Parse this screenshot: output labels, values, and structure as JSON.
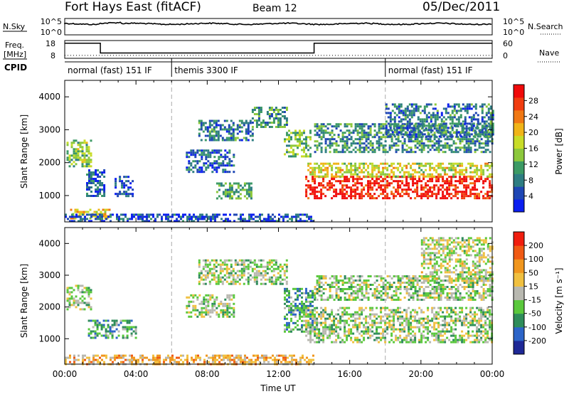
{
  "header": {
    "station": "Fort Hays East (fitACF)",
    "beam": "Beam 12",
    "date": "05/Dec/2011"
  },
  "left_labels": {
    "nsky": "N.Sky",
    "freq": "Freq.",
    "freq_unit": "[MHz]",
    "cpid": "CPID"
  },
  "right_labels": {
    "nsearch": "N.Search",
    "nave": "Nave"
  },
  "top_axes": {
    "noise_ticks_left": [
      "10^5",
      "10^0"
    ],
    "noise_ticks_right": [
      "10^5",
      "10^0"
    ],
    "freq_ticks": [
      "18",
      "8"
    ],
    "nave_ticks": [
      "60",
      "0"
    ]
  },
  "cpid_segments": [
    {
      "label": "normal (fast) 151 IF",
      "start_hour": 0,
      "end_hour": 6
    },
    {
      "label": "themis 3300 IF",
      "start_hour": 6,
      "end_hour": 18
    },
    {
      "label": "normal (fast) 151 IF",
      "start_hour": 18,
      "end_hour": 24
    }
  ],
  "freq_series": {
    "name": "Freq.",
    "hours": [
      0,
      2,
      2,
      14,
      14,
      24
    ],
    "values_mhz": [
      16.5,
      16.5,
      11,
      11,
      16.5,
      16.5
    ]
  },
  "nave_series": {
    "name": "Nave",
    "value": 10
  },
  "chart_data": [
    {
      "type": "heatmap",
      "ylabel": "Slant Range [km]",
      "xlim_hours": [
        0,
        24
      ],
      "ylim_km": [
        200,
        4500
      ],
      "yticks": [
        "1000",
        "2000",
        "3000",
        "4000"
      ],
      "colorbar": {
        "label": "Power [dB]",
        "ticks": [
          "4",
          "8",
          "12",
          "16",
          "20",
          "24",
          "28"
        ],
        "colors": [
          "#0a1ef0",
          "#1e46b4",
          "#2e7d82",
          "#3c9a64",
          "#8cc83c",
          "#c8dc28",
          "#f0b418",
          "#f07814",
          "#f03c0f",
          "#f00a0a"
        ]
      },
      "regions": [
        {
          "t0": 0.1,
          "t1": 1.5,
          "r0": 1900,
          "r1": 2700,
          "level": 0.45
        },
        {
          "t0": 0.3,
          "t1": 2.5,
          "r0": 300,
          "r1": 600,
          "level": 0.6
        },
        {
          "t0": 1.2,
          "t1": 2.2,
          "r0": 1000,
          "r1": 1800,
          "level": 0.2
        },
        {
          "t0": 2.8,
          "t1": 3.8,
          "r0": 1000,
          "r1": 1600,
          "level": 0.15
        },
        {
          "t0": 6.8,
          "t1": 9.5,
          "r0": 1700,
          "r1": 2400,
          "level": 0.2
        },
        {
          "t0": 7.5,
          "t1": 10.5,
          "r0": 2700,
          "r1": 3300,
          "level": 0.25
        },
        {
          "t0": 8.5,
          "t1": 10.5,
          "r0": 900,
          "r1": 1400,
          "level": 0.35
        },
        {
          "t0": 10.5,
          "t1": 12.5,
          "r0": 3100,
          "r1": 3700,
          "level": 0.3
        },
        {
          "t0": 12.3,
          "t1": 13.8,
          "r0": 2200,
          "r1": 3000,
          "level": 0.4
        },
        {
          "t0": 13.5,
          "t1": 24,
          "r0": 900,
          "r1": 1600,
          "level": 0.93
        },
        {
          "t0": 13.5,
          "t1": 24,
          "r0": 1600,
          "r1": 2000,
          "level": 0.55
        },
        {
          "t0": 14,
          "t1": 24,
          "r0": 2300,
          "r1": 3200,
          "level": 0.3
        },
        {
          "t0": 18,
          "t1": 24,
          "r0": 2800,
          "r1": 3800,
          "level": 0.25
        },
        {
          "t0": 0,
          "t1": 14,
          "r0": 200,
          "r1": 450,
          "level": 0.15
        }
      ]
    },
    {
      "type": "heatmap",
      "ylabel": "Slant Range [km]",
      "xlabel": "Time UT",
      "xlim_hours": [
        0,
        24
      ],
      "ylim_km": [
        200,
        4500
      ],
      "yticks": [
        "1000",
        "2000",
        "3000",
        "4000"
      ],
      "xticks": [
        "00:00",
        "04:00",
        "08:00",
        "12:00",
        "16:00",
        "20:00",
        "00:00"
      ],
      "colorbar": {
        "label": "Velocity [m s⁻¹]",
        "ticks": [
          "200",
          "100",
          "50",
          "15",
          "-15",
          "-50",
          "-100",
          "-200"
        ],
        "colors": [
          "#1e2896",
          "#2c64c8",
          "#2e8c5a",
          "#5ac83c",
          "#b8b8b0",
          "#f0c040",
          "#f0961e",
          "#f05a14",
          "#f01e0f"
        ]
      },
      "regions": [
        {
          "t0": 0.1,
          "t1": 1.5,
          "r0": 1900,
          "r1": 2700,
          "level": 0.45
        },
        {
          "t0": 1.3,
          "t1": 4.0,
          "r0": 1000,
          "r1": 1600,
          "level": 0.32
        },
        {
          "t0": 0,
          "t1": 14,
          "r0": 200,
          "r1": 500,
          "level": 0.65
        },
        {
          "t0": 6.8,
          "t1": 9.5,
          "r0": 1700,
          "r1": 2400,
          "level": 0.45
        },
        {
          "t0": 7.5,
          "t1": 12.5,
          "r0": 2700,
          "r1": 3500,
          "level": 0.45
        },
        {
          "t0": 12.3,
          "t1": 14.0,
          "r0": 1200,
          "r1": 2600,
          "level": 0.32
        },
        {
          "t0": 13.5,
          "t1": 24,
          "r0": 900,
          "r1": 2000,
          "level": 0.45
        },
        {
          "t0": 14,
          "t1": 24,
          "r0": 2200,
          "r1": 3000,
          "level": 0.45
        },
        {
          "t0": 20,
          "t1": 24,
          "r0": 2800,
          "r1": 4200,
          "level": 0.5
        }
      ]
    }
  ]
}
